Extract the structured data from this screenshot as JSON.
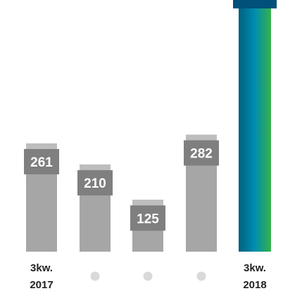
{
  "chart_data": {
    "type": "bar",
    "categories": [
      "3kw. 2017",
      "",
      "",
      "",
      "3kw. 2018"
    ],
    "category_lines": [
      [
        "3kw.",
        "2017"
      ],
      [],
      [],
      [],
      [
        "3kw.",
        "2018"
      ]
    ],
    "values": [
      261,
      210,
      125,
      282,
      null
    ],
    "value_labels": [
      "261",
      "210",
      "125",
      "282",
      ""
    ],
    "title": "",
    "xlabel": "",
    "ylabel": "",
    "grid": false,
    "legend": "none",
    "highlight_index": 4,
    "colors": {
      "bar": "#a6a6a6",
      "bar_top": "#bdbdbd",
      "label_box": "#7f7f7f",
      "label_text": "#ffffff",
      "dot": "#d9d9d9",
      "highlight_start": "#00607f",
      "highlight_mid": "#008db0",
      "highlight_end": "#36b24a",
      "highlight_cap": "#00507a",
      "category_text": "#222222"
    }
  }
}
